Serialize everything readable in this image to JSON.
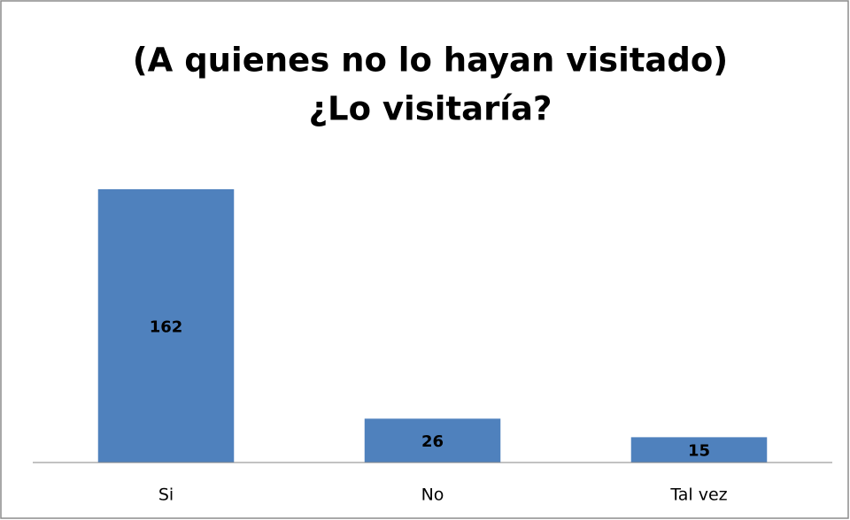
{
  "chart_data": {
    "type": "bar",
    "title": [
      "(A quienes no lo hayan visitado)",
      "¿Lo visitaría?"
    ],
    "categories": [
      "Si",
      "No",
      "Tal vez"
    ],
    "values": [
      162,
      26,
      15
    ],
    "color": "#4f81bd",
    "data_labels": true
  }
}
